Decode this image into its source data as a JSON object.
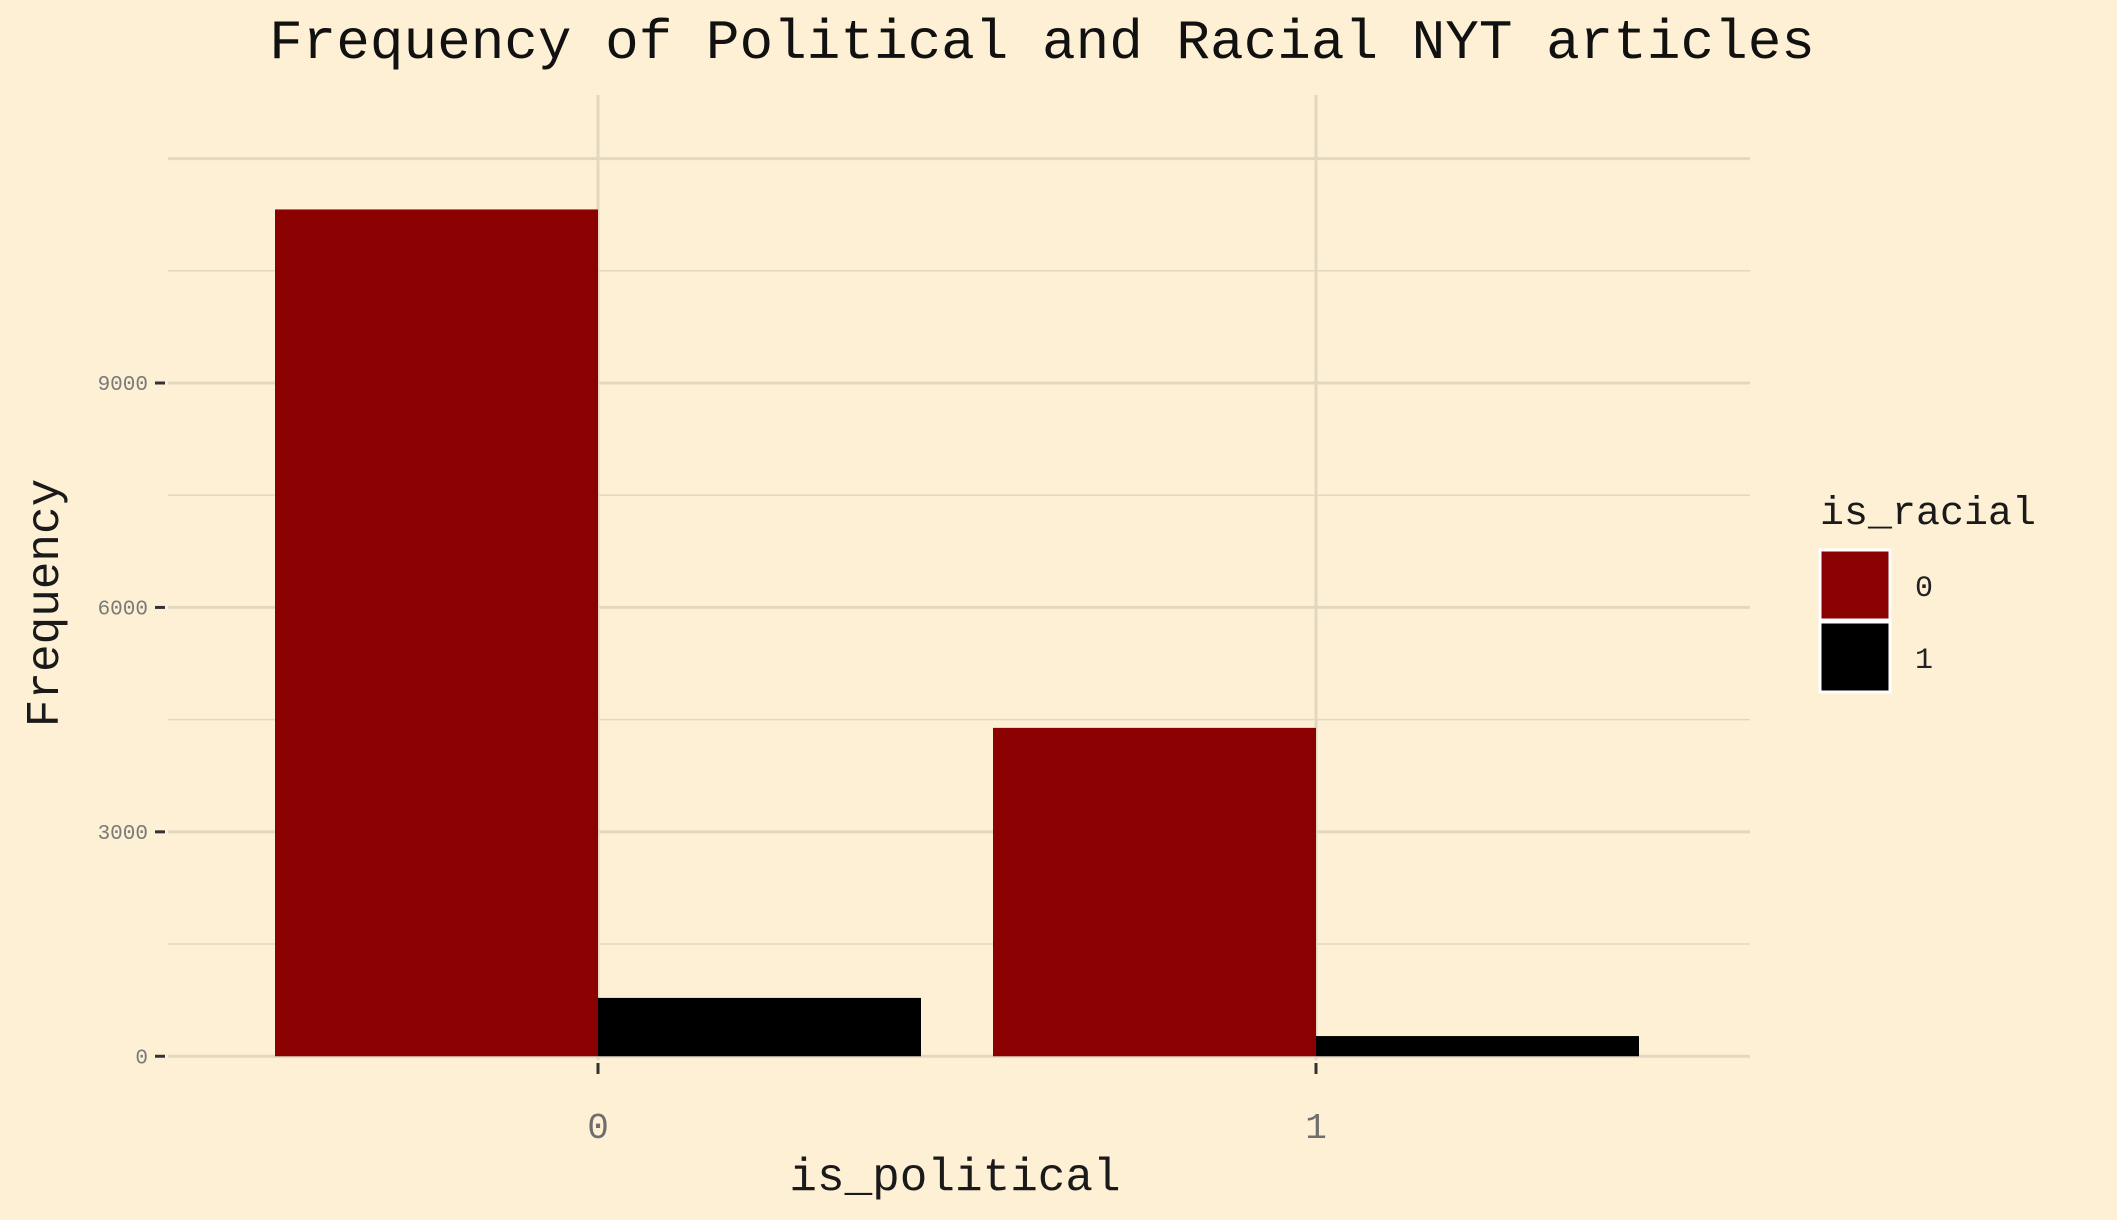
{
  "chart_data": {
    "type": "bar",
    "title": "Frequency of Political and Racial NYT articles",
    "xlabel": "is_political",
    "ylabel": "Frequency",
    "categories": [
      "0",
      "1"
    ],
    "ylim": [
      -50,
      12850
    ],
    "yticks": [
      0,
      3000,
      6000,
      9000
    ],
    "grid": true,
    "legend": {
      "title": "is_racial",
      "position": "right"
    },
    "series": [
      {
        "name": "0",
        "color": "#8b0000",
        "values": [
          11320,
          4390
        ]
      },
      {
        "name": "1",
        "color": "#000000",
        "values": [
          780,
          270
        ]
      }
    ]
  }
}
